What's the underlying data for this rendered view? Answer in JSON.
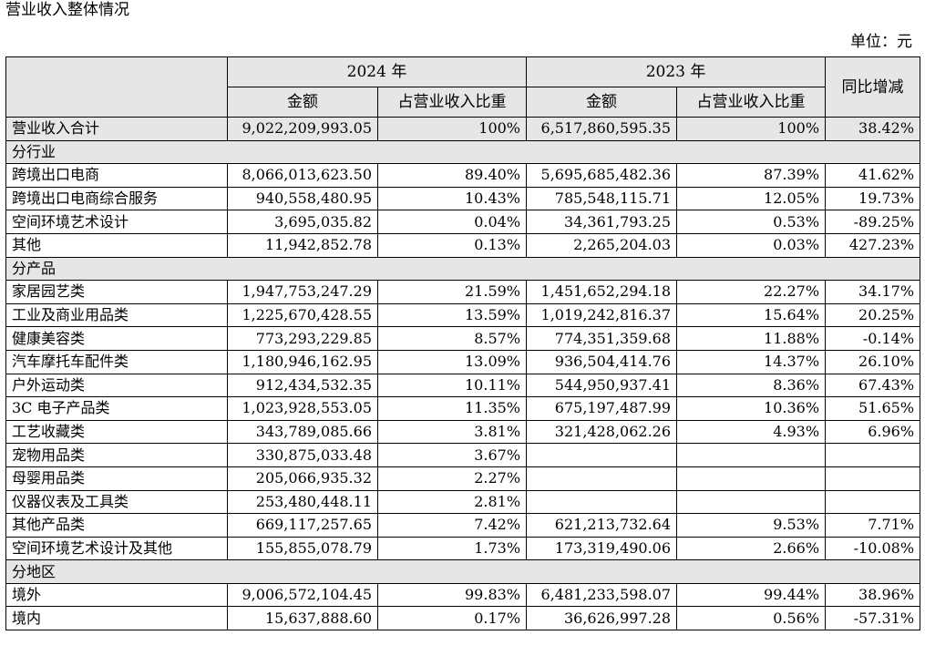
{
  "title": "营业收入整体情况",
  "unit": "单位：元",
  "header": {
    "year_2024": "2024 年",
    "year_2023": "2023 年",
    "amount_2024": "金额",
    "share_2024": "占营业收入比重",
    "amount_2023": "金额",
    "share_2023": "占营业收入比重",
    "yoy": "同比增减"
  },
  "total": {
    "name": "营业收入合计",
    "amt2024": "9,022,209,993.05",
    "pct2024": "100%",
    "amt2023": "6,517,860,595.35",
    "pct2023": "100%",
    "yoy": "38.42%"
  },
  "sections": [
    {
      "title": "分行业",
      "rows": [
        {
          "name": "跨境出口电商",
          "amt2024": "8,066,013,623.50",
          "pct2024": "89.40%",
          "amt2023": "5,695,685,482.36",
          "pct2023": "87.39%",
          "yoy": "41.62%"
        },
        {
          "name": "跨境出口电商综合服务",
          "amt2024": "940,558,480.95",
          "pct2024": "10.43%",
          "amt2023": "785,548,115.71",
          "pct2023": "12.05%",
          "yoy": "19.73%"
        },
        {
          "name": "空间环境艺术设计",
          "amt2024": "3,695,035.82",
          "pct2024": "0.04%",
          "amt2023": "34,361,793.25",
          "pct2023": "0.53%",
          "yoy": "-89.25%"
        },
        {
          "name": "其他",
          "amt2024": "11,942,852.78",
          "pct2024": "0.13%",
          "amt2023": "2,265,204.03",
          "pct2023": "0.03%",
          "yoy": "427.23%"
        }
      ]
    },
    {
      "title": "分产品",
      "rows": [
        {
          "name": "家居园艺类",
          "amt2024": "1,947,753,247.29",
          "pct2024": "21.59%",
          "amt2023": "1,451,652,294.18",
          "pct2023": "22.27%",
          "yoy": "34.17%"
        },
        {
          "name": "工业及商业用品类",
          "amt2024": "1,225,670,428.55",
          "pct2024": "13.59%",
          "amt2023": "1,019,242,816.37",
          "pct2023": "15.64%",
          "yoy": "20.25%"
        },
        {
          "name": "健康美容类",
          "amt2024": "773,293,229.85",
          "pct2024": "8.57%",
          "amt2023": "774,351,359.68",
          "pct2023": "11.88%",
          "yoy": "-0.14%"
        },
        {
          "name": "汽车摩托车配件类",
          "amt2024": "1,180,946,162.95",
          "pct2024": "13.09%",
          "amt2023": "936,504,414.76",
          "pct2023": "14.37%",
          "yoy": "26.10%"
        },
        {
          "name": "户外运动类",
          "amt2024": "912,434,532.35",
          "pct2024": "10.11%",
          "amt2023": "544,950,937.41",
          "pct2023": "8.36%",
          "yoy": "67.43%"
        },
        {
          "name": "3C 电子产品类",
          "amt2024": "1,023,928,553.05",
          "pct2024": "11.35%",
          "amt2023": "675,197,487.99",
          "pct2023": "10.36%",
          "yoy": "51.65%"
        },
        {
          "name": "工艺收藏类",
          "amt2024": "343,789,085.66",
          "pct2024": "3.81%",
          "amt2023": "321,428,062.26",
          "pct2023": "4.93%",
          "yoy": "6.96%"
        },
        {
          "name": "宠物用品类",
          "amt2024": "330,875,033.48",
          "pct2024": "3.67%",
          "amt2023": "",
          "pct2023": "",
          "yoy": ""
        },
        {
          "name": "母婴用品类",
          "amt2024": "205,066,935.32",
          "pct2024": "2.27%",
          "amt2023": "",
          "pct2023": "",
          "yoy": ""
        },
        {
          "name": "仪器仪表及工具类",
          "amt2024": "253,480,448.11",
          "pct2024": "2.81%",
          "amt2023": "",
          "pct2023": "",
          "yoy": ""
        },
        {
          "name": "其他产品类",
          "amt2024": "669,117,257.65",
          "pct2024": "7.42%",
          "amt2023": "621,213,732.64",
          "pct2023": "9.53%",
          "yoy": "7.71%"
        },
        {
          "name": "空间环境艺术设计及其他",
          "amt2024": "155,855,078.79",
          "pct2024": "1.73%",
          "amt2023": "173,319,490.06",
          "pct2023": "2.66%",
          "yoy": "-10.08%"
        }
      ]
    },
    {
      "title": "分地区",
      "rows": [
        {
          "name": "境外",
          "amt2024": "9,006,572,104.45",
          "pct2024": "99.83%",
          "amt2023": "6,481,233,598.07",
          "pct2023": "99.44%",
          "yoy": "38.96%"
        },
        {
          "name": "境内",
          "amt2024": "15,637,888.60",
          "pct2024": "0.17%",
          "amt2023": "36,626,997.28",
          "pct2023": "0.56%",
          "yoy": "-57.31%"
        }
      ]
    }
  ]
}
